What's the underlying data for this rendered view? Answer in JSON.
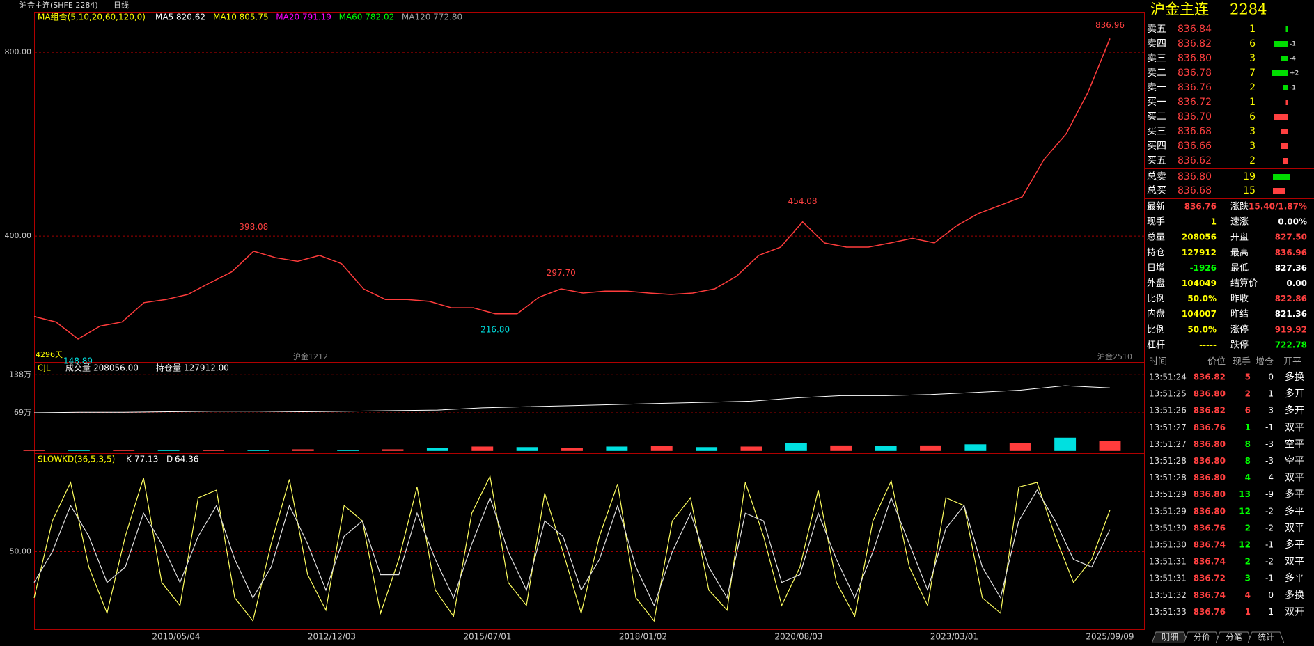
{
  "header": {
    "symbol": "沪金主连(SHFE 2284)",
    "period": "日线"
  },
  "ma_legend": {
    "title": "MA组合(5,10,20,60,120,0)",
    "items": [
      {
        "text": "MA5 820.62",
        "color": "#ffffff"
      },
      {
        "text": "MA10 805.75",
        "color": "#ffff00"
      },
      {
        "text": "MA20 791.19",
        "color": "#ff00ff"
      },
      {
        "text": "MA60 782.02",
        "color": "#00ff00"
      },
      {
        "text": "MA120 772.80",
        "color": "#a0a0a0"
      }
    ]
  },
  "chart_labels": {
    "days": "4296天",
    "contract_start": "沪金1212",
    "contract_end": "沪金2510"
  },
  "chart_data": [
    {
      "type": "line",
      "color": "#ff3c3c",
      "values": [
        225,
        213,
        176,
        204,
        213,
        255,
        262,
        273,
        298,
        322,
        367,
        353,
        345,
        358,
        340,
        285,
        262,
        262,
        258,
        244,
        244,
        231,
        231,
        267,
        285,
        276,
        280,
        280,
        276,
        273,
        276,
        285,
        313,
        358,
        376,
        431,
        385,
        376,
        376,
        385,
        395,
        385,
        422,
        449,
        467,
        485,
        567,
        622,
        713,
        830
      ],
      "ylim": [
        126,
        888
      ],
      "yticks": [
        {
          "value": 400,
          "label": "400.00"
        },
        {
          "value": 800,
          "label": "800.00"
        }
      ],
      "grid": true,
      "annotations": [
        {
          "value": 398.08,
          "label": "398.08",
          "color": "#ff4040"
        },
        {
          "value": 148.89,
          "label": "148.89",
          "color": "#00e0e0"
        },
        {
          "value": 297.7,
          "label": "297.70",
          "color": "#ff4040"
        },
        {
          "value": 216.8,
          "label": "216.80",
          "color": "#00e0e0"
        },
        {
          "value": 454.08,
          "label": "454.08",
          "color": "#ff4040"
        },
        {
          "value": 836.96,
          "label": "836.96",
          "color": "#ff4040"
        }
      ]
    },
    {
      "type": "combo",
      "title": "CJL",
      "ylim": [
        -4,
        161
      ],
      "yticks": [
        {
          "value": 69,
          "label": "69万"
        },
        {
          "value": 138,
          "label": "138万"
        }
      ],
      "grid": true,
      "series": [
        {
          "name": "成交量",
          "latest": "208056.00",
          "kind": "bar",
          "colors": [
            "#ff3c3c",
            "#00e0e0"
          ],
          "values": [
            1,
            1,
            1,
            2,
            2,
            2,
            3,
            2,
            3,
            5,
            8,
            7,
            6,
            8,
            9,
            7,
            8,
            14,
            10,
            9,
            10,
            12,
            14,
            24,
            18
          ]
        },
        {
          "name": "持仓量",
          "latest": "127912.00",
          "kind": "line",
          "color": "#ffffff",
          "values": [
            69,
            70,
            70,
            71,
            72,
            72,
            71,
            72,
            73,
            74,
            78,
            80,
            82,
            84,
            86,
            88,
            90,
            96,
            100,
            100,
            102,
            106,
            110,
            118,
            114
          ]
        }
      ]
    },
    {
      "type": "line",
      "title": "SLOWKD(36,5,3,5)",
      "ylim": [
        0,
        114
      ],
      "yticks": [
        {
          "value": 50,
          "label": "50.00"
        }
      ],
      "grid": true,
      "xticks": [
        "2010/05/04",
        "2012/12/03",
        "2015/07/01",
        "2018/01/02",
        "2020/08/03",
        "2023/03/01",
        "2025/09/09"
      ],
      "series": [
        {
          "name": "K",
          "latest": "77.13",
          "color": "#ffff60",
          "values": [
            20,
            70,
            95,
            40,
            10,
            60,
            98,
            30,
            15,
            85,
            90,
            20,
            5,
            55,
            97,
            35,
            12,
            80,
            70,
            10,
            45,
            92,
            25,
            8,
            75,
            99,
            30,
            15,
            88,
            50,
            10,
            60,
            94,
            20,
            5,
            70,
            85,
            25,
            12,
            95,
            60,
            15,
            40,
            90,
            30,
            8,
            70,
            96,
            40,
            15,
            85,
            80,
            20,
            10,
            92,
            95,
            60,
            30,
            45,
            77.13
          ]
        },
        {
          "name": "D",
          "latest": "64.36",
          "color": "#e0e0e0",
          "values": [
            30,
            50,
            80,
            60,
            30,
            40,
            75,
            55,
            30,
            60,
            80,
            45,
            20,
            40,
            80,
            55,
            25,
            60,
            70,
            35,
            35,
            75,
            45,
            20,
            55,
            85,
            50,
            25,
            70,
            60,
            25,
            45,
            80,
            40,
            15,
            50,
            75,
            40,
            20,
            75,
            70,
            30,
            35,
            75,
            45,
            20,
            50,
            85,
            55,
            25,
            65,
            80,
            40,
            20,
            70,
            90,
            70,
            45,
            40,
            64.36
          ]
        }
      ]
    }
  ],
  "quote": {
    "title": "沪金主连",
    "code": "2284"
  },
  "order_book": {
    "asks": [
      [
        "卖五",
        "836.84",
        "1",
        ""
      ],
      [
        "卖四",
        "836.82",
        "6",
        "-1"
      ],
      [
        "卖三",
        "836.80",
        "3",
        "-4"
      ],
      [
        "卖二",
        "836.78",
        "7",
        "+2"
      ],
      [
        "卖一",
        "836.76",
        "2",
        "-1"
      ]
    ],
    "bids": [
      [
        "买一",
        "836.72",
        "1",
        ""
      ],
      [
        "买二",
        "836.70",
        "6",
        ""
      ],
      [
        "买三",
        "836.68",
        "3",
        ""
      ],
      [
        "买四",
        "836.66",
        "3",
        ""
      ],
      [
        "买五",
        "836.62",
        "2",
        ""
      ]
    ],
    "totals": [
      [
        "总卖",
        "836.80",
        "19"
      ],
      [
        "总买",
        "836.68",
        "15"
      ]
    ]
  },
  "stats": [
    [
      "最新",
      "836.76",
      "涨跌",
      "15.40/1.87%"
    ],
    [
      "现手",
      "1",
      "速涨",
      "0.00%"
    ],
    [
      "总量",
      "208056",
      "开盘",
      "827.50"
    ],
    [
      "持仓",
      "127912",
      "最高",
      "836.96"
    ],
    [
      "日增",
      "-1926",
      "最低",
      "827.36"
    ],
    [
      "外盘",
      "104049",
      "结算价",
      "0.00"
    ],
    [
      "比例",
      "50.0%",
      "昨收",
      "822.86"
    ],
    [
      "内盘",
      "104007",
      "昨结",
      "821.36"
    ],
    [
      "比例",
      "50.0%",
      "涨停",
      "919.92"
    ],
    [
      "杠杆",
      "-----",
      "跌停",
      "722.78"
    ]
  ],
  "trades": {
    "columns": [
      "时间",
      "价位",
      "现手",
      "增仓",
      "开平"
    ],
    "rows": [
      [
        "13:51:24",
        "836.82",
        "5",
        "0",
        "多换"
      ],
      [
        "13:51:25",
        "836.80",
        "2",
        "1",
        "多开"
      ],
      [
        "13:51:26",
        "836.82",
        "6",
        "3",
        "多开"
      ],
      [
        "13:51:27",
        "836.76",
        "1",
        "-1",
        "双平"
      ],
      [
        "13:51:27",
        "836.80",
        "8",
        "-3",
        "空平"
      ],
      [
        "13:51:28",
        "836.80",
        "8",
        "-3",
        "空平"
      ],
      [
        "13:51:28",
        "836.80",
        "4",
        "-4",
        "双平"
      ],
      [
        "13:51:29",
        "836.80",
        "13",
        "-9",
        "多平"
      ],
      [
        "13:51:29",
        "836.80",
        "12",
        "-2",
        "多平"
      ],
      [
        "13:51:30",
        "836.76",
        "2",
        "-2",
        "双平"
      ],
      [
        "13:51:30",
        "836.74",
        "12",
        "-1",
        "多平"
      ],
      [
        "13:51:31",
        "836.74",
        "2",
        "-2",
        "双平"
      ],
      [
        "13:51:31",
        "836.72",
        "3",
        "-1",
        "多平"
      ],
      [
        "13:51:32",
        "836.74",
        "4",
        "0",
        "多换"
      ],
      [
        "13:51:33",
        "836.76",
        "1",
        "1",
        "双开"
      ]
    ]
  },
  "tabs": [
    "明细",
    "分价",
    "分笔",
    "统计"
  ]
}
